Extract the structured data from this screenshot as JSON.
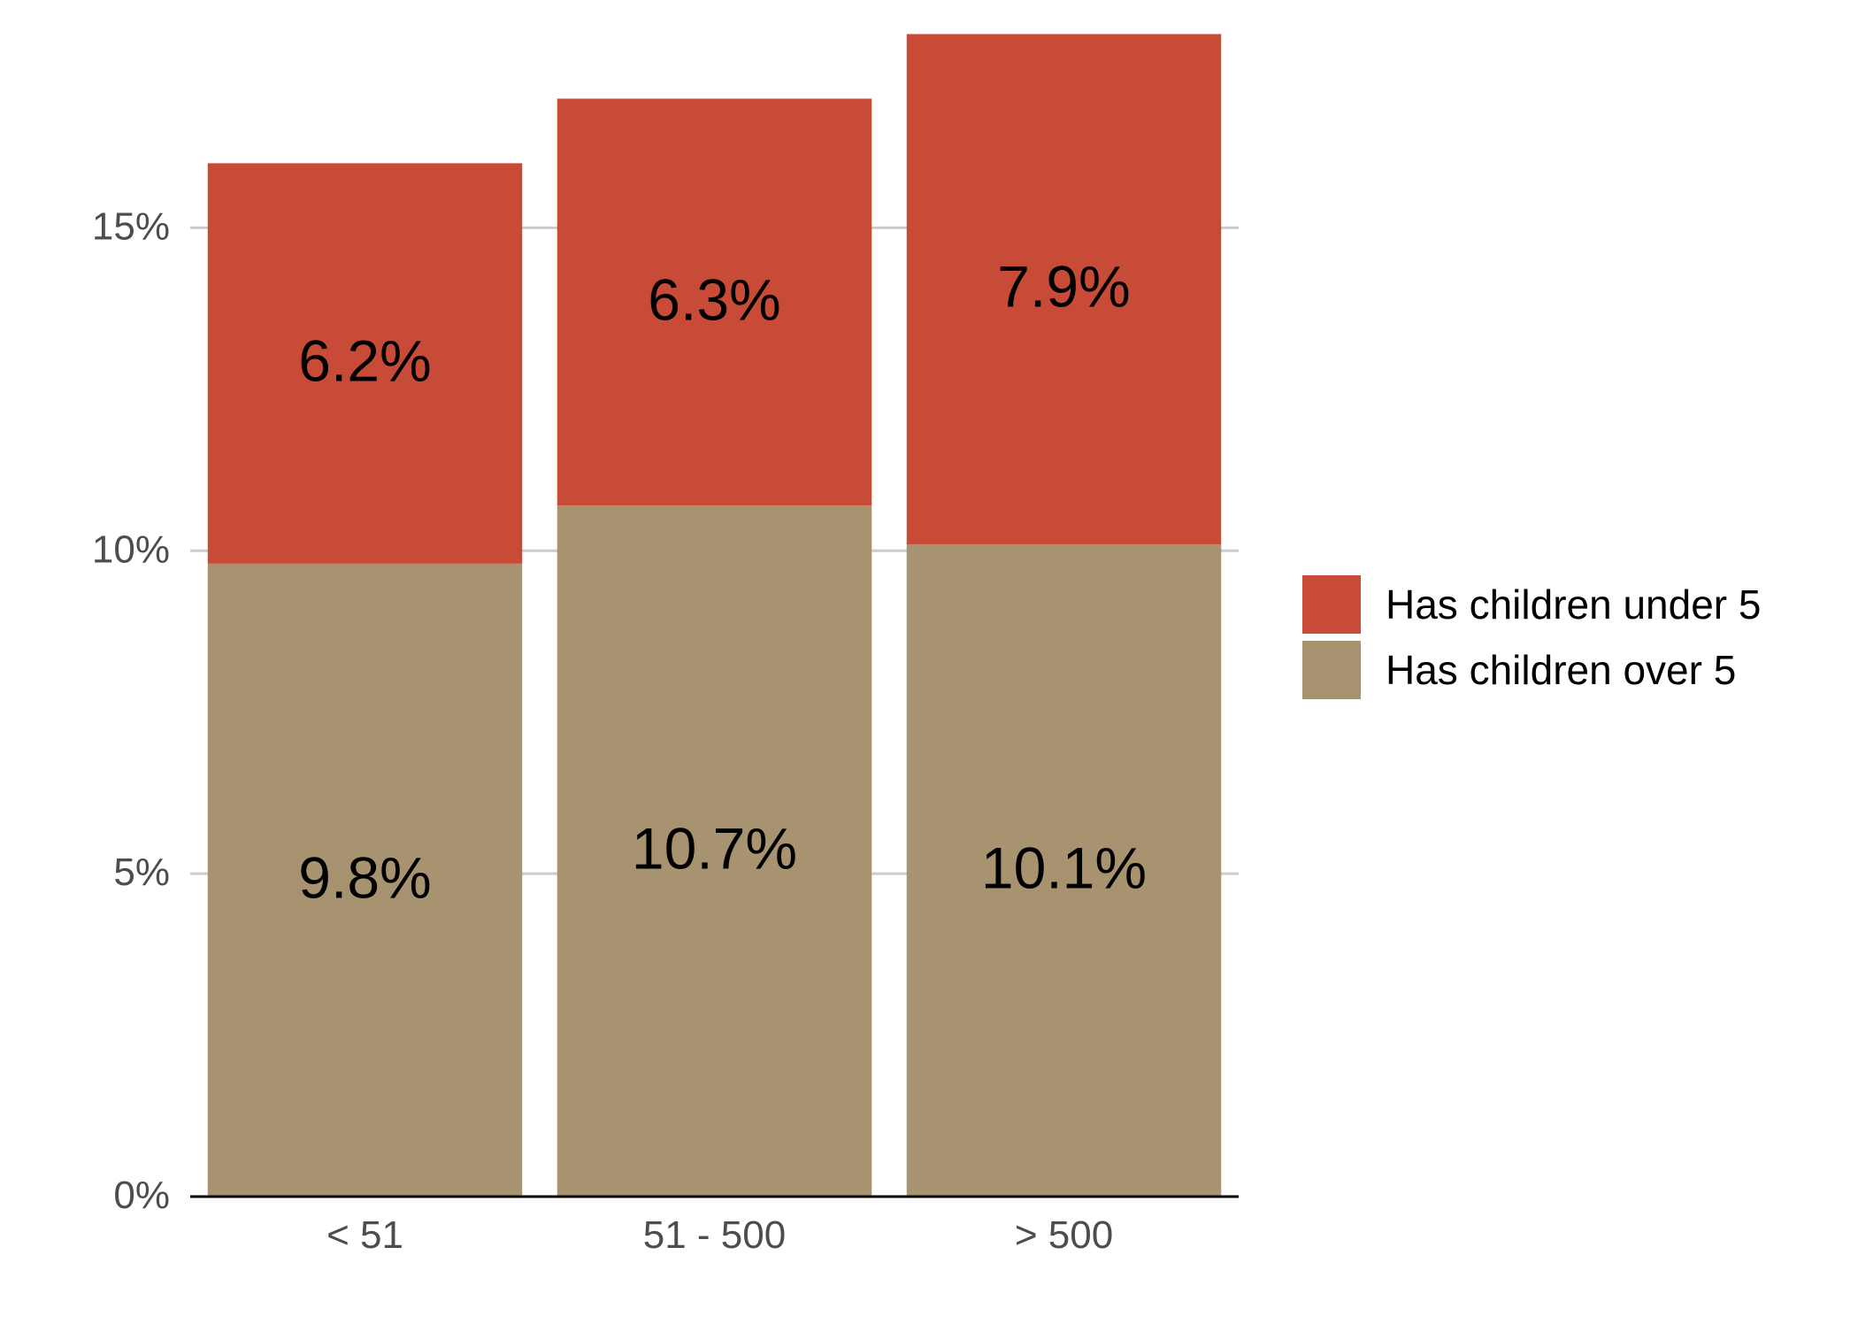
{
  "chart_data": {
    "type": "bar",
    "stacked": true,
    "title": "",
    "xlabel": "",
    "ylabel": "",
    "categories": [
      "< 51",
      "51 - 500",
      "> 500"
    ],
    "series": [
      {
        "name": "Has children over 5",
        "values": [
          9.8,
          10.7,
          10.1
        ],
        "labels": [
          "9.8%",
          "10.7%",
          "10.1%"
        ],
        "color": "#a89371"
      },
      {
        "name": "Has children under 5",
        "values": [
          6.2,
          6.3,
          7.9
        ],
        "labels": [
          "6.2%",
          "6.3%",
          "7.9%"
        ],
        "color": "#c84b38"
      }
    ],
    "y_ticks": [
      0,
      5,
      10,
      15
    ],
    "y_tick_labels": [
      "0%",
      "5%",
      "10%",
      "15%"
    ],
    "ylim": [
      0,
      18.5
    ],
    "grid": true,
    "grid_color": "#cccccc",
    "legend": {
      "position": "right",
      "entries": [
        "Has children under 5",
        "Has children over 5"
      ]
    }
  }
}
